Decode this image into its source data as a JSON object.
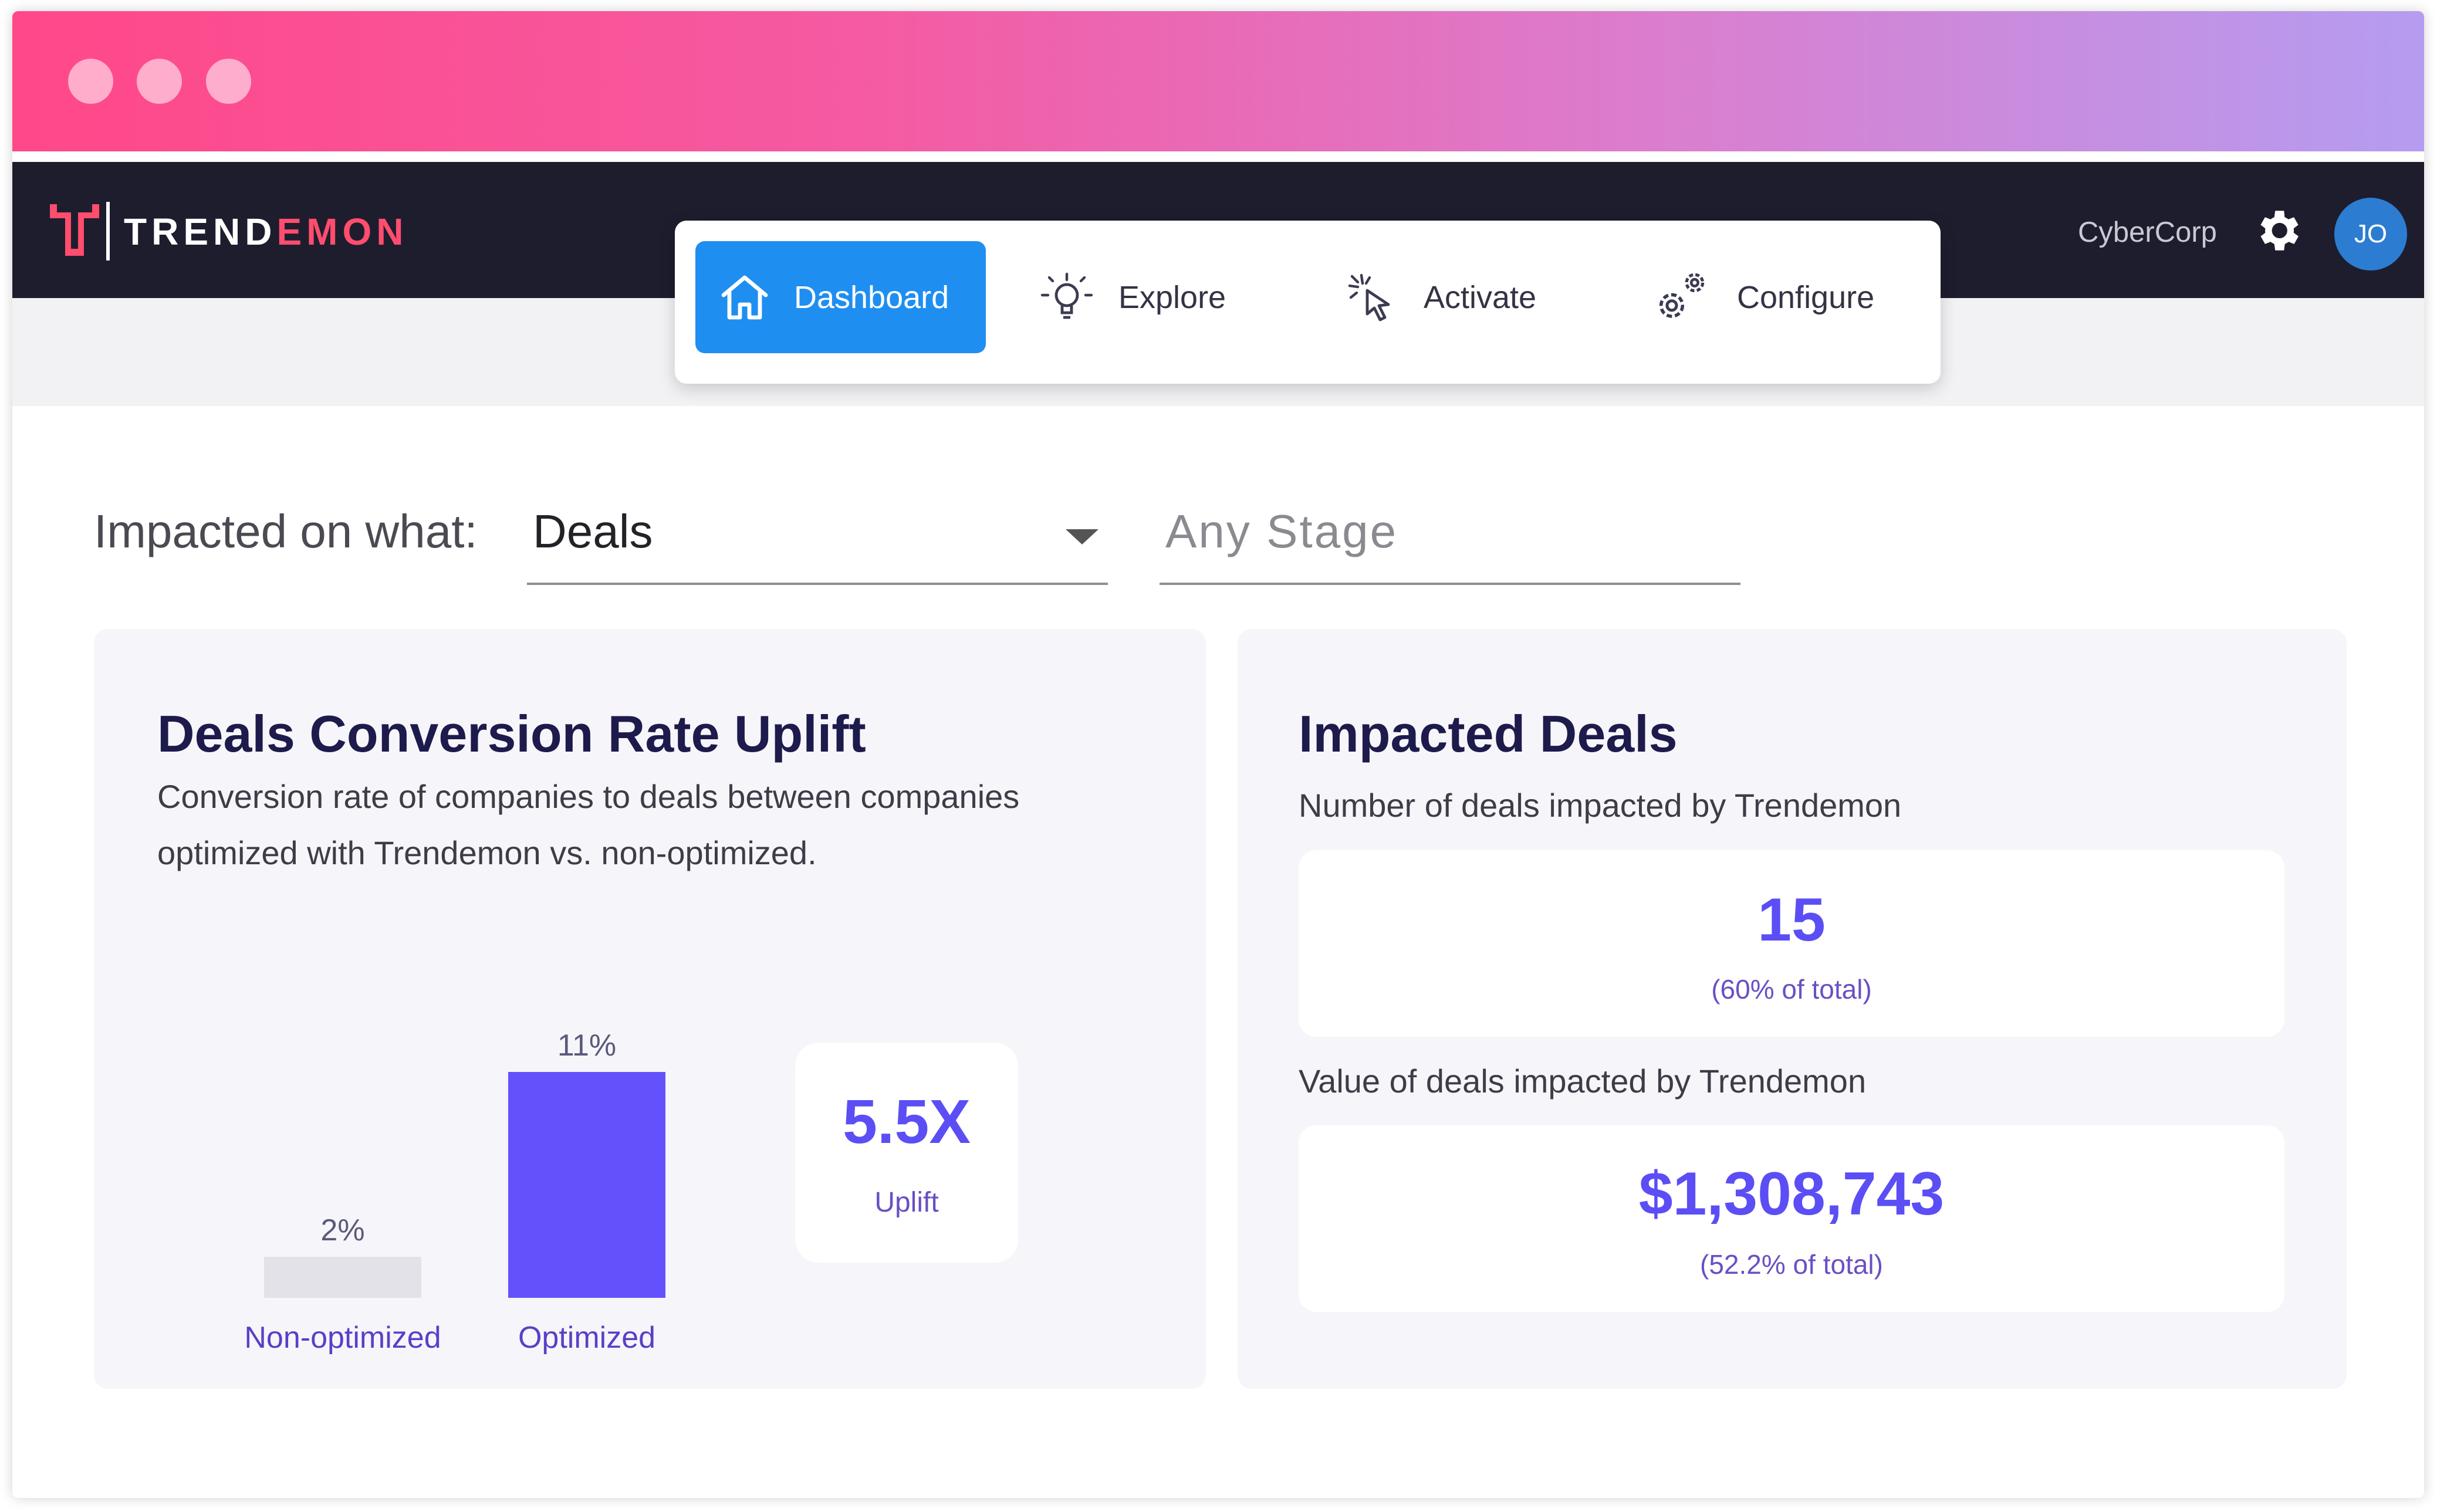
{
  "app": {
    "logo": {
      "part1": "TREND",
      "part2": "EMON"
    },
    "company": "CyberCorp",
    "user_initials": "JO",
    "accent_color": "#5b4ef5",
    "nav_active_color": "#1f8ef1"
  },
  "nav": {
    "items": [
      {
        "label": "Dashboard",
        "icon": "home-icon",
        "active": true
      },
      {
        "label": "Explore",
        "icon": "lightbulb-icon",
        "active": false
      },
      {
        "label": "Activate",
        "icon": "cursor-click-icon",
        "active": false
      },
      {
        "label": "Configure",
        "icon": "gears-icon",
        "active": false
      }
    ]
  },
  "filters": {
    "label": "Impacted on what:",
    "impact_select": "Deals",
    "stage_placeholder": "Any Stage"
  },
  "conversion_card": {
    "title": "Deals Conversion Rate Uplift",
    "description": "Conversion rate of companies to deals between companies optimized with Trendemon vs. non-optimized.",
    "uplift_value": "5.5X",
    "uplift_label": "Uplift",
    "chart_data": {
      "type": "bar",
      "categories": [
        "Non-optimized",
        "Optimized"
      ],
      "values": [
        2,
        11
      ],
      "value_labels": [
        "2%",
        "11%"
      ],
      "colors": [
        "#e3e2e8",
        "#6352fb"
      ]
    }
  },
  "impacted_card": {
    "title": "Impacted Deals",
    "count_caption": "Number of deals impacted by Trendemon",
    "count_value": "15",
    "count_share": "(60% of total)",
    "value_caption": "Value of deals impacted by Trendemon",
    "value_amount": "$1,308,743",
    "value_share": "(52.2% of total)"
  }
}
